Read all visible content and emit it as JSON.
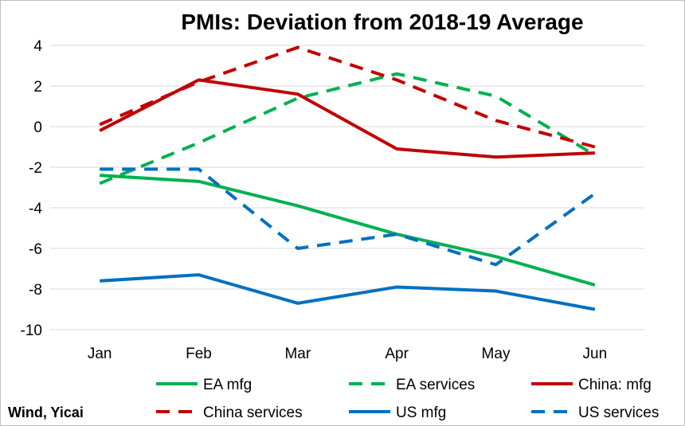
{
  "chart_data": {
    "type": "line",
    "title": "PMIs: Deviation from 2018-19 Average",
    "categories": [
      "Jan",
      "Feb",
      "Mar",
      "Apr",
      "May",
      "Jun"
    ],
    "ylim": [
      -10,
      4
    ],
    "yticks": [
      -10,
      -8,
      -6,
      -4,
      -2,
      0,
      2,
      4
    ],
    "ytick_labels": [
      "-10",
      "-8",
      "-6",
      "-4",
      "-2",
      "0",
      "2",
      "4"
    ],
    "grid": "horizontal",
    "legend_position": "bottom",
    "series": [
      {
        "name": "EA mfg",
        "color": "#00b050",
        "dash": "solid",
        "values": [
          -2.4,
          -2.7,
          -3.9,
          -5.3,
          -6.4,
          -7.8
        ]
      },
      {
        "name": "EA services",
        "color": "#00b050",
        "dash": "dashed",
        "values": [
          -2.8,
          -0.8,
          1.4,
          2.6,
          1.5,
          -1.4
        ]
      },
      {
        "name": "China: mfg",
        "color": "#c00000",
        "dash": "solid",
        "values": [
          -0.2,
          2.3,
          1.6,
          -1.1,
          -1.5,
          -1.3
        ]
      },
      {
        "name": "China services",
        "color": "#c00000",
        "dash": "dashed",
        "values": [
          0.1,
          2.2,
          3.9,
          2.3,
          0.3,
          -1.0
        ]
      },
      {
        "name": "US mfg",
        "color": "#0070c0",
        "dash": "solid",
        "values": [
          -7.6,
          -7.3,
          -8.7,
          -7.9,
          -8.1,
          -9.0
        ]
      },
      {
        "name": "US services",
        "color": "#0070c0",
        "dash": "dashed",
        "values": [
          -2.1,
          -2.1,
          -6.0,
          -5.3,
          -6.8,
          -3.3
        ]
      }
    ]
  },
  "source": "Wind, Yicai"
}
